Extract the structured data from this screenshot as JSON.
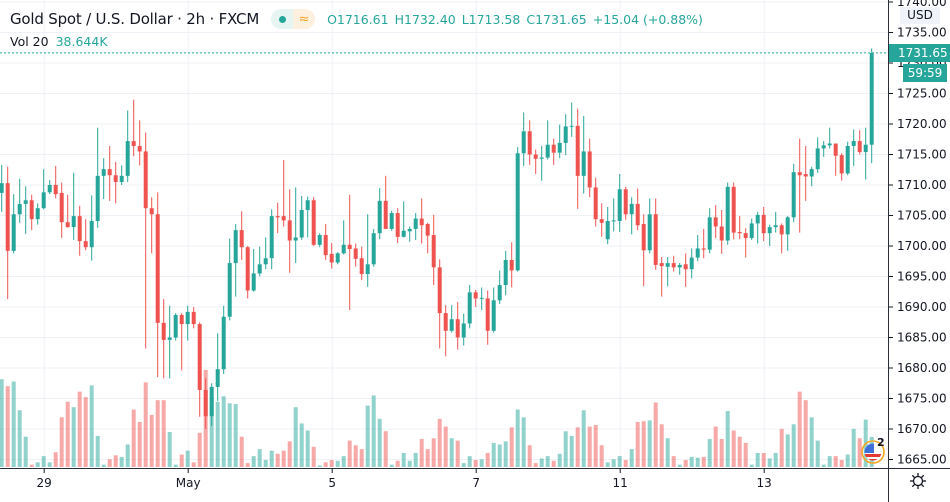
{
  "header": {
    "symbol_title": "Gold Spot / U.S. Dollar · 2h · FXCM",
    "open": "O1716.61",
    "high": "H1732.40",
    "low": "L1713.58",
    "close": "C1731.65",
    "change": "+15.04 (+0.88%)",
    "volume_label": "Vol 20",
    "volume_value": "38.644K",
    "status_icon": "market-open-dot-icon",
    "data_icon": "wave-icon"
  },
  "price_axis": {
    "currency": "USD",
    "last_price": "1731.65",
    "countdown": "59:59",
    "settings_icon": "gear-icon"
  },
  "events": {
    "icon": "us-flag-icon",
    "count": "2"
  },
  "colors": {
    "up": "#26a69a",
    "down": "#ef5350",
    "grid": "#eef1f6",
    "axis": "#131722"
  },
  "chart_data": {
    "type": "candlestick",
    "title": "Gold Spot / U.S. Dollar · 2h · FXCM",
    "interval": "2h",
    "ylim": [
      1665,
      1740
    ],
    "y_ticks": [
      "1740.00",
      "1735.00",
      "1730.00",
      "1725.00",
      "1720.00",
      "1715.00",
      "1710.00",
      "1705.00",
      "1700.00",
      "1695.00",
      "1690.00",
      "1685.00",
      "1680.00",
      "1675.00",
      "1670.00",
      "1665.00"
    ],
    "x_tick_labels": [
      {
        "label": "29",
        "candle_index": 7
      },
      {
        "label": "May",
        "candle_index": 31
      },
      {
        "label": "5",
        "candle_index": 55
      },
      {
        "label": "7",
        "candle_index": 79
      },
      {
        "label": "11",
        "candle_index": 103
      },
      {
        "label": "13",
        "candle_index": 127
      }
    ],
    "grid": true,
    "candles_ohlc": [
      [
        1708.7,
        1713.3,
        1705.6,
        1710.3
      ],
      [
        1710.3,
        1713,
        1691.3,
        1699.2
      ],
      [
        1699.2,
        1708.5,
        1698.8,
        1705.2
      ],
      [
        1705.2,
        1711,
        1703.8,
        1706.9
      ],
      [
        1706.9,
        1709.8,
        1702,
        1707.5
      ],
      [
        1707.5,
        1708.4,
        1702.6,
        1704.4
      ],
      [
        1704.4,
        1707,
        1703.5,
        1706.2
      ],
      [
        1706.2,
        1712.6,
        1706,
        1708.8
      ],
      [
        1708.8,
        1710.8,
        1708.5,
        1710
      ],
      [
        1710,
        1713.1,
        1707.8,
        1708.5
      ],
      [
        1708.7,
        1710.4,
        1701.3,
        1703.9
      ],
      [
        1703.9,
        1708.4,
        1703,
        1703.1
      ],
      [
        1703.1,
        1712,
        1701,
        1704.9
      ],
      [
        1704.9,
        1706.6,
        1698.4,
        1700.8
      ],
      [
        1700.8,
        1704.4,
        1699.3,
        1699.8
      ],
      [
        1699.8,
        1708.3,
        1697.6,
        1704.1
      ],
      [
        1704.1,
        1719.4,
        1703,
        1711.5
      ],
      [
        1711.5,
        1714.4,
        1707.7,
        1712.6
      ],
      [
        1712.6,
        1716.4,
        1707.4,
        1711.6
      ],
      [
        1711.6,
        1713.8,
        1707,
        1710.5
      ],
      [
        1710.5,
        1713.2,
        1710,
        1711.5
      ],
      [
        1711.5,
        1722.2,
        1710.5,
        1717.2
      ],
      [
        1717.2,
        1724,
        1714.7,
        1716.4
      ],
      [
        1716.4,
        1720.6,
        1713.2,
        1715.5
      ],
      [
        1715.5,
        1718.6,
        1683.2,
        1706.2
      ],
      [
        1706.2,
        1708,
        1698.8,
        1705.2
      ],
      [
        1705.2,
        1708.8,
        1678.5,
        1687.4
      ],
      [
        1687.4,
        1691.3,
        1678.3,
        1684.6
      ],
      [
        1684.6,
        1690.2,
        1678.3,
        1685
      ],
      [
        1685,
        1689,
        1684.5,
        1688.7
      ],
      [
        1688.7,
        1689,
        1679.6,
        1687.2
      ],
      [
        1687.2,
        1690.2,
        1684.5,
        1689.2
      ],
      [
        1689.2,
        1690,
        1686.5,
        1687.2
      ],
      [
        1687.2,
        1687.5,
        1672,
        1676.4
      ],
      [
        1676.4,
        1678.3,
        1670,
        1672.1
      ],
      [
        1672.1,
        1677.5,
        1670.5,
        1676.9
      ],
      [
        1676.9,
        1685.7,
        1674.6,
        1679.8
      ],
      [
        1679.8,
        1690.2,
        1679,
        1688.4
      ],
      [
        1688.4,
        1701.2,
        1687.8,
        1697.2
      ],
      [
        1697.2,
        1703.6,
        1691.7,
        1702.6
      ],
      [
        1702.6,
        1705.7,
        1697.7,
        1699.8
      ],
      [
        1699.8,
        1700,
        1691.4,
        1692.7
      ],
      [
        1692.7,
        1699.5,
        1692.5,
        1695.5
      ],
      [
        1695.5,
        1699.9,
        1695,
        1697
      ],
      [
        1697,
        1701.4,
        1696.2,
        1698
      ],
      [
        1698,
        1706,
        1696.2,
        1704.9
      ],
      [
        1704.9,
        1707.1,
        1702.1,
        1704.7
      ],
      [
        1704.9,
        1714.1,
        1703.2,
        1704.2
      ],
      [
        1704.2,
        1709.3,
        1695.6,
        1700.9
      ],
      [
        1700.9,
        1709.6,
        1697.2,
        1701.4
      ],
      [
        1701.4,
        1708.2,
        1701,
        1705.9
      ],
      [
        1705.9,
        1708.1,
        1701.4,
        1707.5
      ],
      [
        1707.5,
        1708,
        1700,
        1700.2
      ],
      [
        1700.2,
        1702.1,
        1699.8,
        1701.8
      ],
      [
        1701.8,
        1703.6,
        1697.7,
        1698.5
      ],
      [
        1698.7,
        1700.5,
        1696.3,
        1697.3
      ],
      [
        1697.3,
        1699,
        1697,
        1698.8
      ],
      [
        1698.8,
        1704.2,
        1698.6,
        1700.2
      ],
      [
        1700.2,
        1708.4,
        1689.5,
        1699.5
      ],
      [
        1699.6,
        1700.4,
        1696.6,
        1697.9
      ],
      [
        1698,
        1699.9,
        1694.4,
        1695.4
      ],
      [
        1695.4,
        1705.2,
        1693.3,
        1697
      ],
      [
        1697,
        1702.8,
        1696.6,
        1702.1
      ],
      [
        1702.1,
        1709.5,
        1701.1,
        1707.4
      ],
      [
        1707.4,
        1711.5,
        1702.8,
        1702.8
      ],
      [
        1702.8,
        1705.8,
        1702.5,
        1705.4
      ],
      [
        1705.4,
        1706.2,
        1700.5,
        1701.5
      ],
      [
        1701.5,
        1707.3,
        1701.4,
        1702.5
      ],
      [
        1702.4,
        1703.2,
        1700.7,
        1702.8
      ],
      [
        1702.8,
        1705.4,
        1701,
        1704.5
      ],
      [
        1704.5,
        1707.8,
        1700.4,
        1703.4
      ],
      [
        1703.6,
        1703.8,
        1698.8,
        1701.7
      ],
      [
        1701.8,
        1705.1,
        1693.6,
        1696.5
      ],
      [
        1696.5,
        1697.8,
        1683.2,
        1689
      ],
      [
        1689,
        1690.3,
        1681.9,
        1686.1
      ],
      [
        1686.1,
        1690.3,
        1685.8,
        1688
      ],
      [
        1688,
        1690.8,
        1683,
        1685
      ],
      [
        1685,
        1688.9,
        1683.7,
        1687.3
      ],
      [
        1687.3,
        1693.6,
        1686.5,
        1692.4
      ],
      [
        1692.4,
        1692.8,
        1690,
        1691.4
      ],
      [
        1691.4,
        1693.2,
        1689.5,
        1691.5
      ],
      [
        1691.4,
        1692.7,
        1683.8,
        1686.1
      ],
      [
        1686.1,
        1693.2,
        1685.8,
        1691.1
      ],
      [
        1691.1,
        1696,
        1690.5,
        1693.6
      ],
      [
        1693.6,
        1699.2,
        1691.9,
        1697.7
      ],
      [
        1697.7,
        1700.6,
        1693.2,
        1696
      ],
      [
        1696,
        1716.2,
        1695.8,
        1715.2
      ],
      [
        1715.2,
        1721.9,
        1713.1,
        1718.8
      ],
      [
        1718.8,
        1720.6,
        1713.3,
        1715
      ],
      [
        1715,
        1715.8,
        1711.8,
        1714.3
      ],
      [
        1714.3,
        1716.4,
        1710.7,
        1714.5
      ],
      [
        1714.5,
        1720.6,
        1714.2,
        1716.6
      ],
      [
        1716.6,
        1717.6,
        1713.3,
        1715.3
      ],
      [
        1715.3,
        1719.9,
        1714.4,
        1716.9
      ],
      [
        1716.9,
        1721.6,
        1714.9,
        1719.6
      ],
      [
        1719.6,
        1723.5,
        1717.9,
        1719.7
      ],
      [
        1719.7,
        1722.5,
        1706.1,
        1711.5
      ],
      [
        1711.5,
        1721.3,
        1708.6,
        1715.5
      ],
      [
        1715.5,
        1717.6,
        1708,
        1709.6
      ],
      [
        1709.6,
        1711.2,
        1703.2,
        1704.4
      ],
      [
        1704.4,
        1707,
        1701.5,
        1703.8
      ],
      [
        1701.1,
        1706.4,
        1700.3,
        1704.1
      ],
      [
        1704.1,
        1707.8,
        1702.4,
        1704.2
      ],
      [
        1704.1,
        1711.8,
        1702.3,
        1709.3
      ],
      [
        1709.3,
        1709.7,
        1704.3,
        1705.2
      ],
      [
        1705.2,
        1708,
        1701.9,
        1706.9
      ],
      [
        1706.9,
        1709.4,
        1702.6,
        1703.4
      ],
      [
        1703.6,
        1705.2,
        1693.4,
        1699.3
      ],
      [
        1699.3,
        1707.8,
        1698.8,
        1705.2
      ],
      [
        1705.2,
        1707.8,
        1696.1,
        1696.9
      ],
      [
        1697.2,
        1698.2,
        1691.7,
        1696.7
      ],
      [
        1696.6,
        1698.2,
        1693.4,
        1697.2
      ],
      [
        1697.2,
        1698.4,
        1695.8,
        1696.5
      ],
      [
        1696.5,
        1697.2,
        1695.3,
        1696.9
      ],
      [
        1697,
        1698.8,
        1693.3,
        1696.2
      ],
      [
        1696.2,
        1699.6,
        1694.7,
        1698.1
      ],
      [
        1698.1,
        1701.8,
        1697.5,
        1699.6
      ],
      [
        1699.6,
        1702.8,
        1698,
        1699.4
      ],
      [
        1699.4,
        1706.2,
        1698.8,
        1704.7
      ],
      [
        1704.7,
        1706.7,
        1701.3,
        1703.2
      ],
      [
        1703.2,
        1705.9,
        1698.7,
        1700.9
      ],
      [
        1700.9,
        1710.4,
        1700.2,
        1709.7
      ],
      [
        1709.7,
        1710.4,
        1701.1,
        1702.2
      ],
      [
        1702.3,
        1704.9,
        1701.1,
        1702.1
      ],
      [
        1702.1,
        1702.9,
        1698.1,
        1701.3
      ],
      [
        1701.3,
        1704.5,
        1701,
        1703.7
      ],
      [
        1703.7,
        1705.6,
        1700.4,
        1705.1
      ],
      [
        1705.1,
        1706.4,
        1700.8,
        1702.1
      ],
      [
        1702.1,
        1703.5,
        1700,
        1703.1
      ],
      [
        1703.1,
        1705.6,
        1702.2,
        1703.4
      ],
      [
        1703.4,
        1703.7,
        1698.8,
        1701.9
      ],
      [
        1701.9,
        1704.9,
        1699.2,
        1704.7
      ],
      [
        1704.7,
        1713.5,
        1703.9,
        1712.1
      ],
      [
        1712.1,
        1717.6,
        1702.2,
        1711.6
      ],
      [
        1711.8,
        1716.4,
        1707.4,
        1711.4
      ],
      [
        1711.4,
        1713,
        1709.8,
        1712.6
      ],
      [
        1712.6,
        1717.8,
        1712,
        1716
      ],
      [
        1716,
        1717.2,
        1714.6,
        1716.5
      ],
      [
        1716.5,
        1719.4,
        1716,
        1716.8
      ],
      [
        1716.8,
        1716.8,
        1711.5,
        1714.8
      ],
      [
        1714.9,
        1715.2,
        1710.7,
        1711.9
      ],
      [
        1711.9,
        1717.1,
        1711.6,
        1716.4
      ],
      [
        1716.4,
        1719.1,
        1713.1,
        1717.2
      ],
      [
        1717.2,
        1719,
        1715,
        1715.4
      ],
      [
        1715.4,
        1719.4,
        1710.9,
        1716.61
      ],
      [
        1716.61,
        1732.4,
        1713.58,
        1731.65
      ]
    ],
    "volume_k": [
      113,
      104,
      110,
      73,
      39,
      3,
      6,
      14,
      6,
      19,
      64,
      84,
      77,
      97,
      90,
      105,
      40,
      3,
      10,
      15,
      13,
      29,
      74,
      58,
      109,
      67,
      86,
      86,
      45,
      3,
      16,
      21,
      6,
      44,
      125,
      90,
      84,
      91,
      82,
      81,
      39,
      5,
      14,
      23,
      9,
      21,
      17,
      21,
      33,
      77,
      56,
      47,
      26,
      2,
      6,
      9,
      8,
      14,
      34,
      28,
      23,
      79,
      92,
      62,
      46,
      3,
      8,
      18,
      8,
      18,
      36,
      23,
      37,
      62,
      52,
      37,
      34,
      5,
      14,
      9,
      10,
      18,
      31,
      29,
      33,
      51,
      74,
      64,
      28,
      5,
      11,
      14,
      8,
      17,
      46,
      40,
      51,
      73,
      52,
      54,
      28,
      6,
      10,
      14,
      9,
      23,
      58,
      59,
      60,
      83,
      55,
      37,
      14,
      3,
      9,
      13,
      12,
      13,
      36,
      52,
      36,
      72,
      47,
      39,
      31,
      3,
      18,
      18,
      11,
      18,
      49,
      42,
      55,
      97,
      86,
      64,
      34,
      3,
      14,
      14,
      9,
      16,
      49,
      37,
      61,
      38.644
    ]
  }
}
